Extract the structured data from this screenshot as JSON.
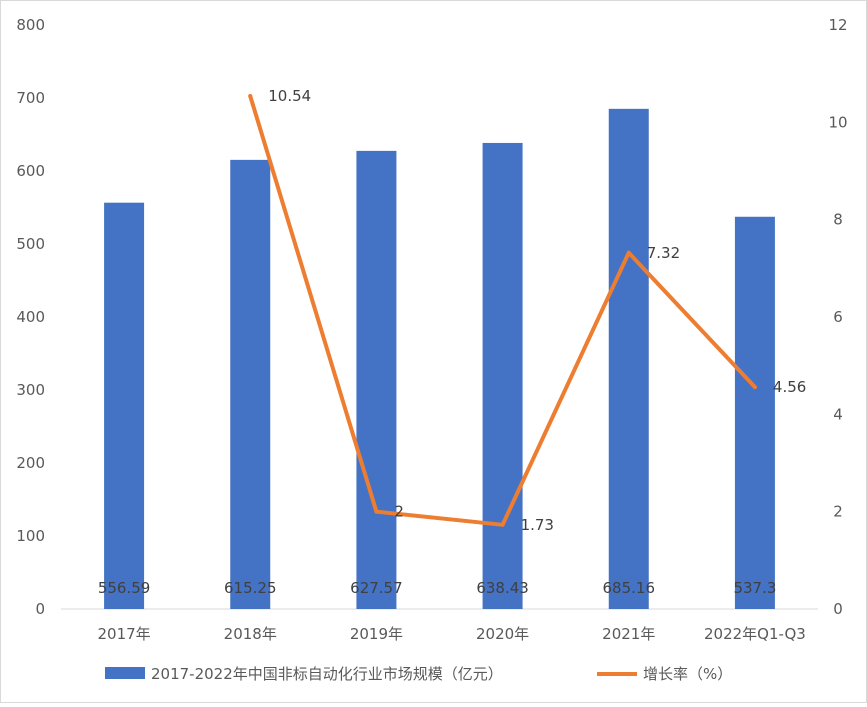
{
  "chart_data": {
    "type": "bar",
    "categories": [
      "2017年",
      "2018年",
      "2019年",
      "2020年",
      "2021年",
      "2022年Q1-Q3"
    ],
    "series": [
      {
        "name": "2017-2022年中国非标自动化行业市场规模（亿元）",
        "type": "bar",
        "axis": "left",
        "values": [
          556.59,
          615.25,
          627.57,
          638.43,
          685.16,
          537.3
        ],
        "labels": [
          "556.59",
          "615.25",
          "627.57",
          "638.43",
          "685.16",
          "537.3"
        ]
      },
      {
        "name": "增长率（%）",
        "type": "line",
        "axis": "right",
        "values": [
          null,
          10.54,
          2,
          1.73,
          7.32,
          4.56
        ],
        "labels": [
          "",
          "10.54",
          "2",
          "1.73",
          "7.32",
          "4.56"
        ]
      }
    ],
    "y_left": {
      "min": 0,
      "max": 800,
      "ticks": [
        0,
        100,
        200,
        300,
        400,
        500,
        600,
        700,
        800
      ]
    },
    "y_right": {
      "min": 0,
      "max": 12,
      "ticks": [
        0,
        2,
        4,
        6,
        8,
        10,
        12
      ]
    },
    "colors": {
      "bar": "#4472c4",
      "line": "#ed7d31"
    },
    "grid": false,
    "legend_position": "bottom"
  }
}
